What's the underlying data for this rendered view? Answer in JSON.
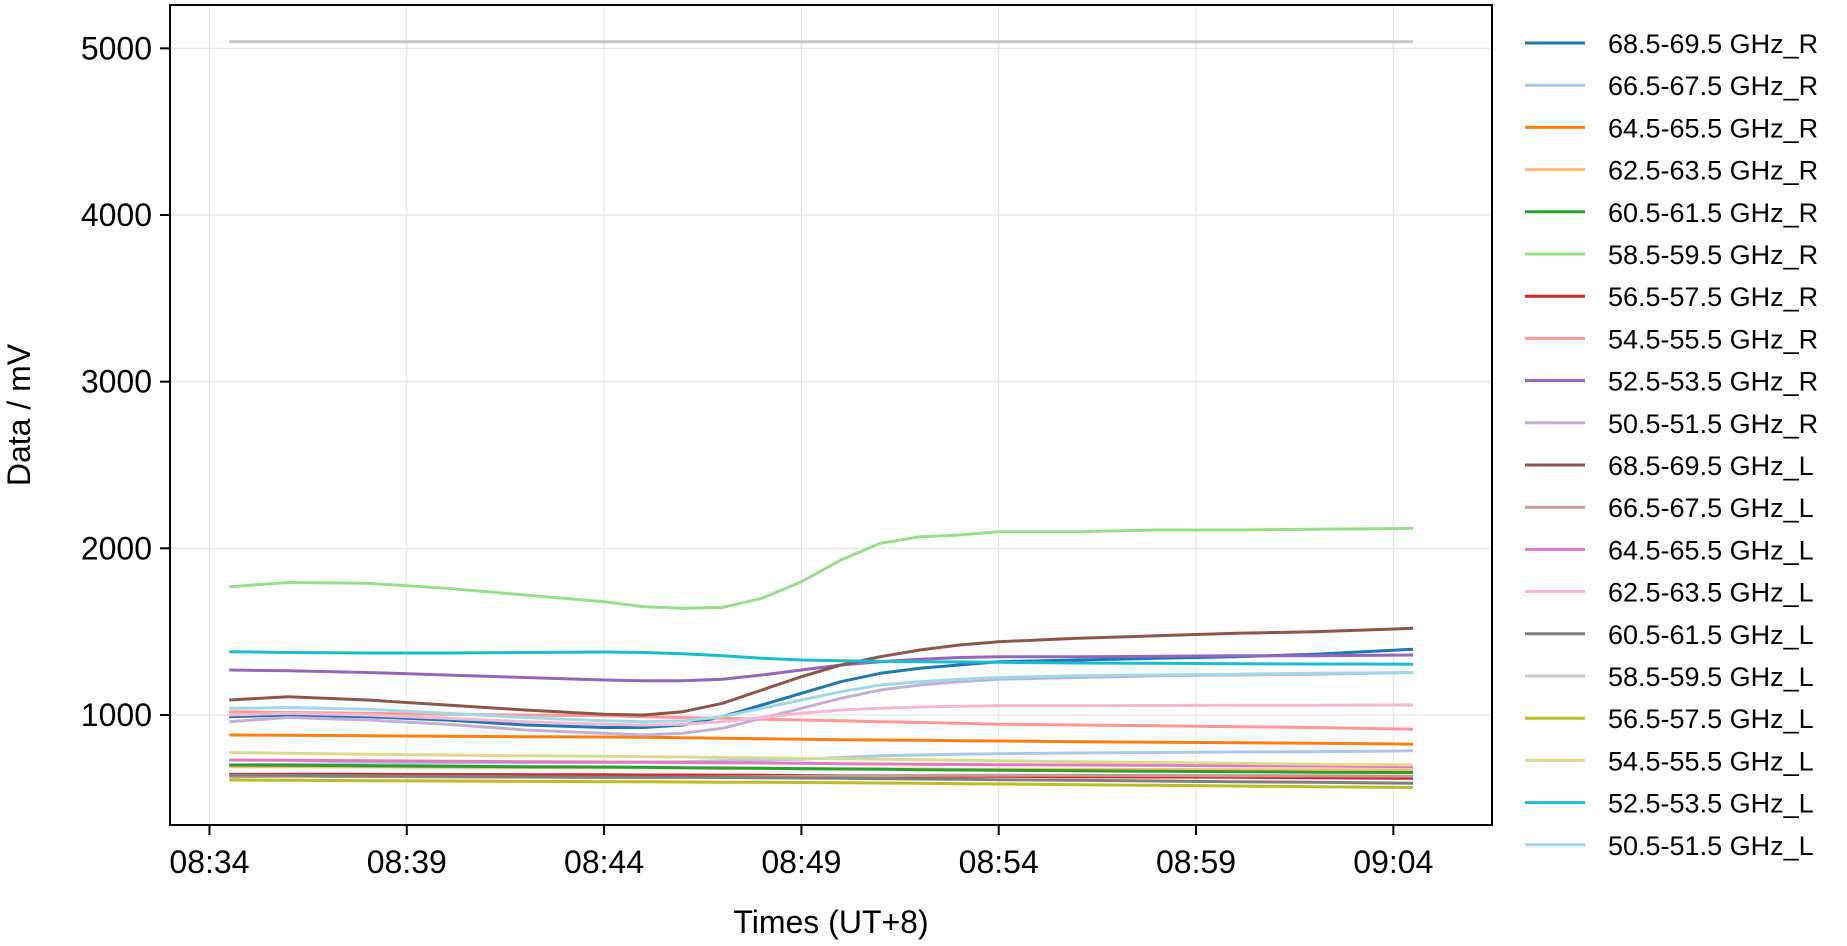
{
  "chart_data": {
    "type": "line",
    "title": "",
    "xlabel": "Times (UT+8)",
    "ylabel": "Data / mV",
    "x_ticks": [
      "08:34",
      "08:39",
      "08:44",
      "08:49",
      "08:54",
      "08:59",
      "09:04"
    ],
    "x_range": [
      "08:33:00",
      "09:06:30"
    ],
    "ylim": [
      340,
      5260
    ],
    "y_ticks": [
      1000,
      2000,
      3000,
      4000,
      5000
    ],
    "grid": true,
    "legend_position": "outside-right",
    "x": [
      "08:34:30",
      "08:36:00",
      "08:38:00",
      "08:40:00",
      "08:42:00",
      "08:44:00",
      "08:45:00",
      "08:46:00",
      "08:47:00",
      "08:48:00",
      "08:49:00",
      "08:50:00",
      "08:51:00",
      "08:52:00",
      "08:53:00",
      "08:54:00",
      "08:56:00",
      "08:58:00",
      "09:00:00",
      "09:02:00",
      "09:04:30"
    ],
    "series": [
      {
        "name": "68.5-69.5 GHz_R",
        "color": "#1f77b4",
        "values": [
          990,
          1000,
          990,
          970,
          940,
          925,
          925,
          940,
          990,
          1060,
          1130,
          1200,
          1250,
          1280,
          1300,
          1320,
          1330,
          1340,
          1350,
          1365,
          1395
        ]
      },
      {
        "name": "66.5-67.5 GHz_R",
        "color": "#aec7e8",
        "values": [
          700,
          705,
          710,
          712,
          715,
          715,
          718,
          720,
          725,
          730,
          735,
          745,
          755,
          760,
          765,
          768,
          772,
          775,
          778,
          780,
          785
        ]
      },
      {
        "name": "64.5-65.5 GHz_R",
        "color": "#ff7f0e",
        "values": [
          880,
          878,
          875,
          872,
          870,
          868,
          866,
          864,
          860,
          857,
          855,
          852,
          850,
          848,
          846,
          844,
          840,
          837,
          833,
          830,
          825
        ]
      },
      {
        "name": "62.5-63.5 GHz_R",
        "color": "#ffbb78",
        "values": [
          690,
          690,
          688,
          686,
          685,
          684,
          683,
          682,
          681,
          680,
          679,
          678,
          677,
          676,
          675,
          675,
          674,
          673,
          672,
          671,
          670
        ]
      },
      {
        "name": "60.5-61.5 GHz_R",
        "color": "#2ca02c",
        "values": [
          700,
          698,
          695,
          692,
          690,
          688,
          686,
          684,
          682,
          680,
          678,
          676,
          674,
          672,
          670,
          668,
          665,
          662,
          660,
          657,
          655
        ]
      },
      {
        "name": "58.5-59.5 GHz_R",
        "color": "#98df8a",
        "values": [
          1770,
          1795,
          1790,
          1760,
          1720,
          1680,
          1650,
          1640,
          1645,
          1700,
          1800,
          1930,
          2030,
          2070,
          2080,
          2100,
          2100,
          2110,
          2110,
          2115,
          2120
        ]
      },
      {
        "name": "56.5-57.5 GHz_R",
        "color": "#d62728",
        "values": [
          645,
          645,
          644,
          643,
          642,
          641,
          640,
          640,
          639,
          638,
          637,
          636,
          635,
          634,
          633,
          632,
          630,
          628,
          626,
          624,
          620
        ]
      },
      {
        "name": "54.5-55.5 GHz_R",
        "color": "#ff9896",
        "values": [
          1020,
          1015,
          1010,
          1005,
          1000,
          995,
          990,
          985,
          980,
          975,
          970,
          965,
          960,
          955,
          950,
          945,
          940,
          935,
          930,
          925,
          915
        ]
      },
      {
        "name": "52.5-53.5 GHz_R",
        "color": "#9467bd",
        "values": [
          1270,
          1265,
          1255,
          1240,
          1225,
          1210,
          1205,
          1205,
          1215,
          1240,
          1270,
          1300,
          1320,
          1335,
          1345,
          1350,
          1350,
          1352,
          1355,
          1355,
          1360
        ]
      },
      {
        "name": "50.5-51.5 GHz_R",
        "color": "#c5b0d5",
        "values": [
          960,
          985,
          970,
          945,
          910,
          890,
          880,
          890,
          920,
          980,
          1040,
          1100,
          1150,
          1180,
          1200,
          1215,
          1225,
          1235,
          1240,
          1245,
          1255
        ]
      },
      {
        "name": "68.5-69.5 GHz_L",
        "color": "#8c564b",
        "values": [
          1090,
          1110,
          1090,
          1060,
          1030,
          1005,
          1000,
          1020,
          1070,
          1150,
          1230,
          1300,
          1350,
          1390,
          1420,
          1440,
          1460,
          1475,
          1490,
          1500,
          1520
        ]
      },
      {
        "name": "66.5-67.5 GHz_L",
        "color": "#c49c94",
        "values": [
          630,
          632,
          630,
          628,
          626,
          625,
          625,
          626,
          628,
          630,
          632,
          634,
          636,
          637,
          638,
          638,
          638,
          637,
          636,
          635,
          633
        ]
      },
      {
        "name": "64.5-65.5 GHz_L",
        "color": "#e377c2",
        "values": [
          730,
          728,
          725,
          722,
          720,
          718,
          716,
          715,
          714,
          712,
          710,
          708,
          706,
          705,
          703,
          702,
          700,
          698,
          696,
          694,
          690
        ]
      },
      {
        "name": "62.5-63.5 GHz_L",
        "color": "#f7b6d2",
        "values": [
          1000,
          1010,
          1000,
          980,
          960,
          945,
          940,
          945,
          960,
          985,
          1010,
          1030,
          1040,
          1048,
          1052,
          1055,
          1056,
          1057,
          1058,
          1059,
          1060
        ]
      },
      {
        "name": "60.5-61.5 GHz_L",
        "color": "#7f7f7f",
        "values": [
          640,
          638,
          635,
          632,
          630,
          628,
          627,
          626,
          625,
          624,
          622,
          620,
          618,
          616,
          614,
          612,
          608,
          604,
          600,
          596,
          590
        ]
      },
      {
        "name": "58.5-59.5 GHz_L",
        "color": "#c7c7c7",
        "values": [
          5040,
          5040,
          5040,
          5040,
          5040,
          5040,
          5040,
          5040,
          5040,
          5040,
          5040,
          5040,
          5040,
          5040,
          5040,
          5040,
          5040,
          5040,
          5040,
          5040,
          5040
        ]
      },
      {
        "name": "56.5-57.5 GHz_L",
        "color": "#bcbd22",
        "values": [
          610,
          608,
          606,
          604,
          602,
          600,
          599,
          598,
          597,
          596,
          595,
          594,
          592,
          590,
          588,
          586,
          582,
          578,
          574,
          570,
          565
        ]
      },
      {
        "name": "54.5-55.5 GHz_L",
        "color": "#dbdb8d",
        "values": [
          775,
          770,
          765,
          760,
          755,
          752,
          750,
          748,
          745,
          742,
          740,
          737,
          734,
          731,
          728,
          725,
          720,
          715,
          710,
          705,
          700
        ]
      },
      {
        "name": "52.5-53.5 GHz_L",
        "color": "#17becf",
        "values": [
          1380,
          1375,
          1372,
          1372,
          1375,
          1378,
          1375,
          1368,
          1355,
          1340,
          1330,
          1325,
          1322,
          1320,
          1318,
          1316,
          1312,
          1310,
          1308,
          1306,
          1305
        ]
      },
      {
        "name": "50.5-51.5 GHz_L",
        "color": "#9edae5",
        "values": [
          1040,
          1045,
          1035,
          1010,
          985,
          965,
          960,
          965,
          990,
          1040,
          1090,
          1140,
          1180,
          1200,
          1215,
          1225,
          1235,
          1240,
          1245,
          1250,
          1255
        ]
      }
    ]
  }
}
